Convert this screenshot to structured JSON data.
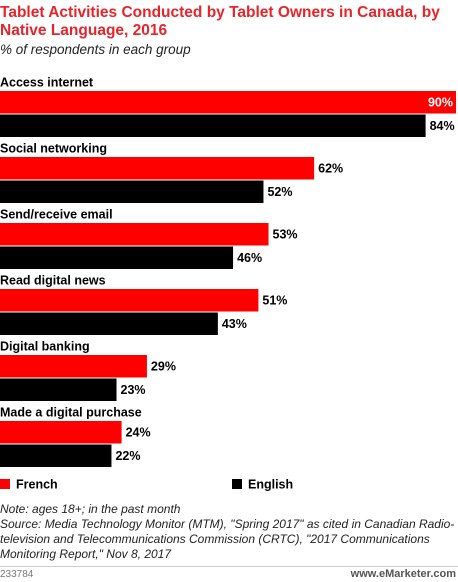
{
  "chart_data": {
    "type": "bar",
    "orientation": "horizontal",
    "title": "Tablet Activities Conducted by Tablet Owners in Canada, by Native Language, 2016",
    "subtitle": "% of respondents in each group",
    "categories": [
      "Access internet",
      "Social networking",
      "Send/receive email",
      "Read digital news",
      "Digital banking",
      "Made a digital purchase"
    ],
    "series": [
      {
        "name": "French",
        "color": "#ff0000",
        "values": [
          90,
          62,
          53,
          51,
          29,
          24
        ],
        "value_labels": [
          "90%",
          "62%",
          "53%",
          "51%",
          "29%",
          "24%"
        ]
      },
      {
        "name": "English",
        "color": "#000000",
        "values": [
          84,
          52,
          46,
          43,
          23,
          22
        ],
        "value_labels": [
          "84%",
          "52%",
          "46%",
          "43%",
          "23%",
          "22%"
        ]
      }
    ],
    "note": "Note: ages 18+; in the past month",
    "source": "Source: Media Technology Monitor (MTM), \"Spring 2017\" as cited in Canadian Radio-television and Telecommunications Commission (CRTC), \"2017 Communications Monitoring Report,\" Nov 8, 2017",
    "chart_id": "233784",
    "credit": "www.eMarketer.com"
  }
}
